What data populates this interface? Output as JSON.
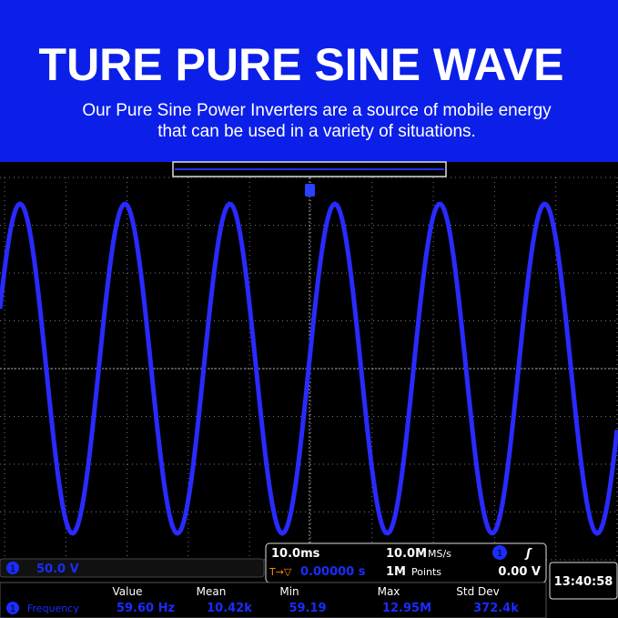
{
  "header": {
    "title": "TURE PURE SINE WAVE",
    "subtitle_lines": [
      "Our Pure Sine Power Inverters are a source of mobile energy",
      "that can be used in a variety of situations."
    ]
  },
  "scope": {
    "channel": "1",
    "channel_scale": "50.0 V",
    "time_scale": "10.0ms",
    "trigger_offset": "0.00000 s",
    "sample_rate": "10.0M",
    "sample_rate_unit": "MS/s",
    "record_length": "1M",
    "record_length_unit": "Points",
    "trigger_level": "0.00 V",
    "clock": "13:40:58",
    "measurements": {
      "headers": [
        "Value",
        "Mean",
        "Min",
        "Max",
        "Std Dev"
      ],
      "row": {
        "label": "Frequency",
        "cells": [
          "59.60 Hz",
          "10.42k",
          "59.19",
          "12.95M",
          "372.4k"
        ]
      }
    }
  }
}
